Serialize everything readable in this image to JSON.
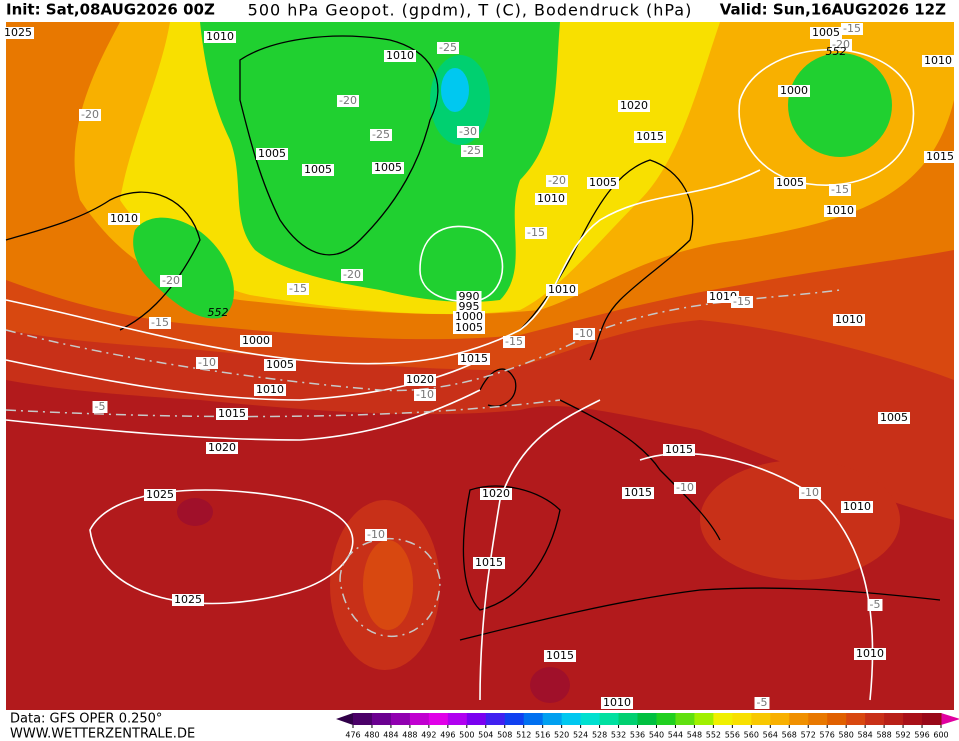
{
  "header": {
    "init": "Init: Sat,08AUG2026 00Z",
    "title": "500 hPa Geopot. (gpdm), T (C), Bodendruck (hPa)",
    "valid": "Valid: Sun,16AUG2026 12Z"
  },
  "footer": {
    "source": "Data: GFS OPER 0.250°",
    "site": "WWW.WETTERZENTRALE.DE"
  },
  "legend": {
    "ticks": [
      476,
      480,
      484,
      488,
      492,
      496,
      500,
      504,
      508,
      512,
      516,
      520,
      524,
      528,
      532,
      536,
      540,
      544,
      548,
      552,
      556,
      560,
      564,
      568,
      572,
      576,
      580,
      584,
      588,
      592,
      596,
      600
    ],
    "colors": [
      "#4a0068",
      "#6a0090",
      "#9000b0",
      "#c000d0",
      "#e000e8",
      "#b000f0",
      "#7a00f0",
      "#4020f0",
      "#1040f0",
      "#0070f0",
      "#00a0f0",
      "#00c8f0",
      "#00e0d0",
      "#00e0a0",
      "#00d070",
      "#00c040",
      "#20d020",
      "#60e010",
      "#a0f000",
      "#f0f000",
      "#f8e000",
      "#f8c800",
      "#f8b000",
      "#f09000",
      "#e87800",
      "#e06000",
      "#d84810",
      "#c83018",
      "#b82018",
      "#a81018",
      "#980818"
    ]
  },
  "map": {
    "isobar_labels": [
      "1025",
      "1010",
      "1010",
      "1005",
      "1005",
      "1005",
      "1010",
      "1020",
      "1015",
      "1005",
      "1010",
      "1005",
      "1000",
      "1010",
      "1015",
      "1005",
      "1010",
      "1010",
      "1010",
      "1010",
      "990",
      "995",
      "1000",
      "1005",
      "1000",
      "1005",
      "1010",
      "1015",
      "1020",
      "1015",
      "1020",
      "1005",
      "1015",
      "1015",
      "1020",
      "1010",
      "1025",
      "1015",
      "1025",
      "1015",
      "1010",
      "1010"
    ],
    "temperature_labels": [
      "-20",
      "-20",
      "-25",
      "-25",
      "-30",
      "-25",
      "-20",
      "-15",
      "-20",
      "-15",
      "-15",
      "-20",
      "-15",
      "-10",
      "-10",
      "-10",
      "-5",
      "-10",
      "-10",
      "-10",
      "-5",
      "-5",
      "-15",
      "-15",
      "-20",
      "-15"
    ],
    "height_labels": [
      "552",
      "552"
    ]
  }
}
